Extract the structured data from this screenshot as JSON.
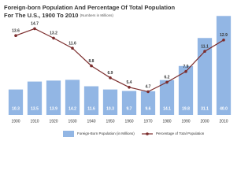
{
  "chart_data": {
    "type": "bar",
    "title": "Foreign-born Population And Percentage Of Total Population",
    "title_line2": "For The U.S., 1900 To 2010",
    "subtitle": "(Numbers in Millions)",
    "categories": [
      "1900",
      "1910",
      "1920",
      "1930",
      "1940",
      "1950",
      "1960",
      "1970",
      "1980",
      "1990",
      "2000",
      "2010"
    ],
    "ylim": [
      0,
      42
    ],
    "y2lim": [
      1,
      17.5
    ],
    "series": [
      {
        "name": "Foreign-Born Population (in Millions)",
        "type": "bar",
        "color": "#92b6e4",
        "values": [
          10.3,
          13.5,
          13.9,
          14.2,
          11.6,
          10.3,
          9.7,
          9.6,
          14.1,
          19.8,
          31.1,
          40.0
        ],
        "value_labels": [
          "10.3",
          "13.5",
          "13.9",
          "14.2",
          "11.6",
          "10.3",
          "9.7",
          "9.6",
          "14.1",
          "19.8",
          "31.1",
          "40.0"
        ]
      },
      {
        "name": "Percentage of Total Population",
        "type": "line",
        "axis": "y2",
        "color": "#7b2c2c",
        "values": [
          13.6,
          14.7,
          13.2,
          11.6,
          8.8,
          6.9,
          5.4,
          4.7,
          6.2,
          7.9,
          11.1,
          12.9
        ]
      }
    ]
  }
}
